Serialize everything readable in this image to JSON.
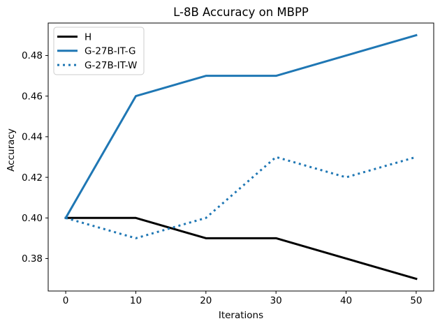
{
  "figure": {
    "title": "L-8B Accuracy on MBPP",
    "xlabel": "Iterations",
    "ylabel": "Accuracy"
  },
  "chart_data": {
    "type": "line",
    "title": "L-8B Accuracy on MBPP",
    "xlabel": "Iterations",
    "ylabel": "Accuracy",
    "x": [
      0,
      10,
      20,
      30,
      40,
      50
    ],
    "series": [
      {
        "name": "H",
        "color": "#000000",
        "style": "solid",
        "linewidth": 3,
        "values": [
          0.4,
          0.4,
          0.39,
          0.39,
          0.38,
          0.37
        ]
      },
      {
        "name": "G-27B-IT-G",
        "color": "#1f77b4",
        "style": "solid",
        "linewidth": 3,
        "values": [
          0.4,
          0.46,
          0.47,
          0.47,
          0.48,
          0.49
        ]
      },
      {
        "name": "G-27B-IT-W",
        "color": "#1f77b4",
        "style": "dotted",
        "linewidth": 3,
        "values": [
          0.4,
          0.39,
          0.4,
          0.43,
          0.42,
          0.43
        ]
      }
    ],
    "xticks": [
      0,
      10,
      20,
      30,
      40,
      50
    ],
    "yticks": [
      0.38,
      0.4,
      0.42,
      0.44,
      0.46,
      0.48
    ],
    "xlim": [
      -2.5,
      52.5
    ],
    "ylim": [
      0.364,
      0.496
    ],
    "grid": false,
    "legend": {
      "position": "upper left",
      "entries": [
        "H",
        "G-27B-IT-G",
        "G-27B-IT-W"
      ],
      "frame_color": "#cccccc",
      "frame_fill": "#ffffff"
    },
    "colors": {
      "axes": "#000000",
      "background": "#ffffff",
      "accent_blue": "#1f77b4"
    }
  }
}
